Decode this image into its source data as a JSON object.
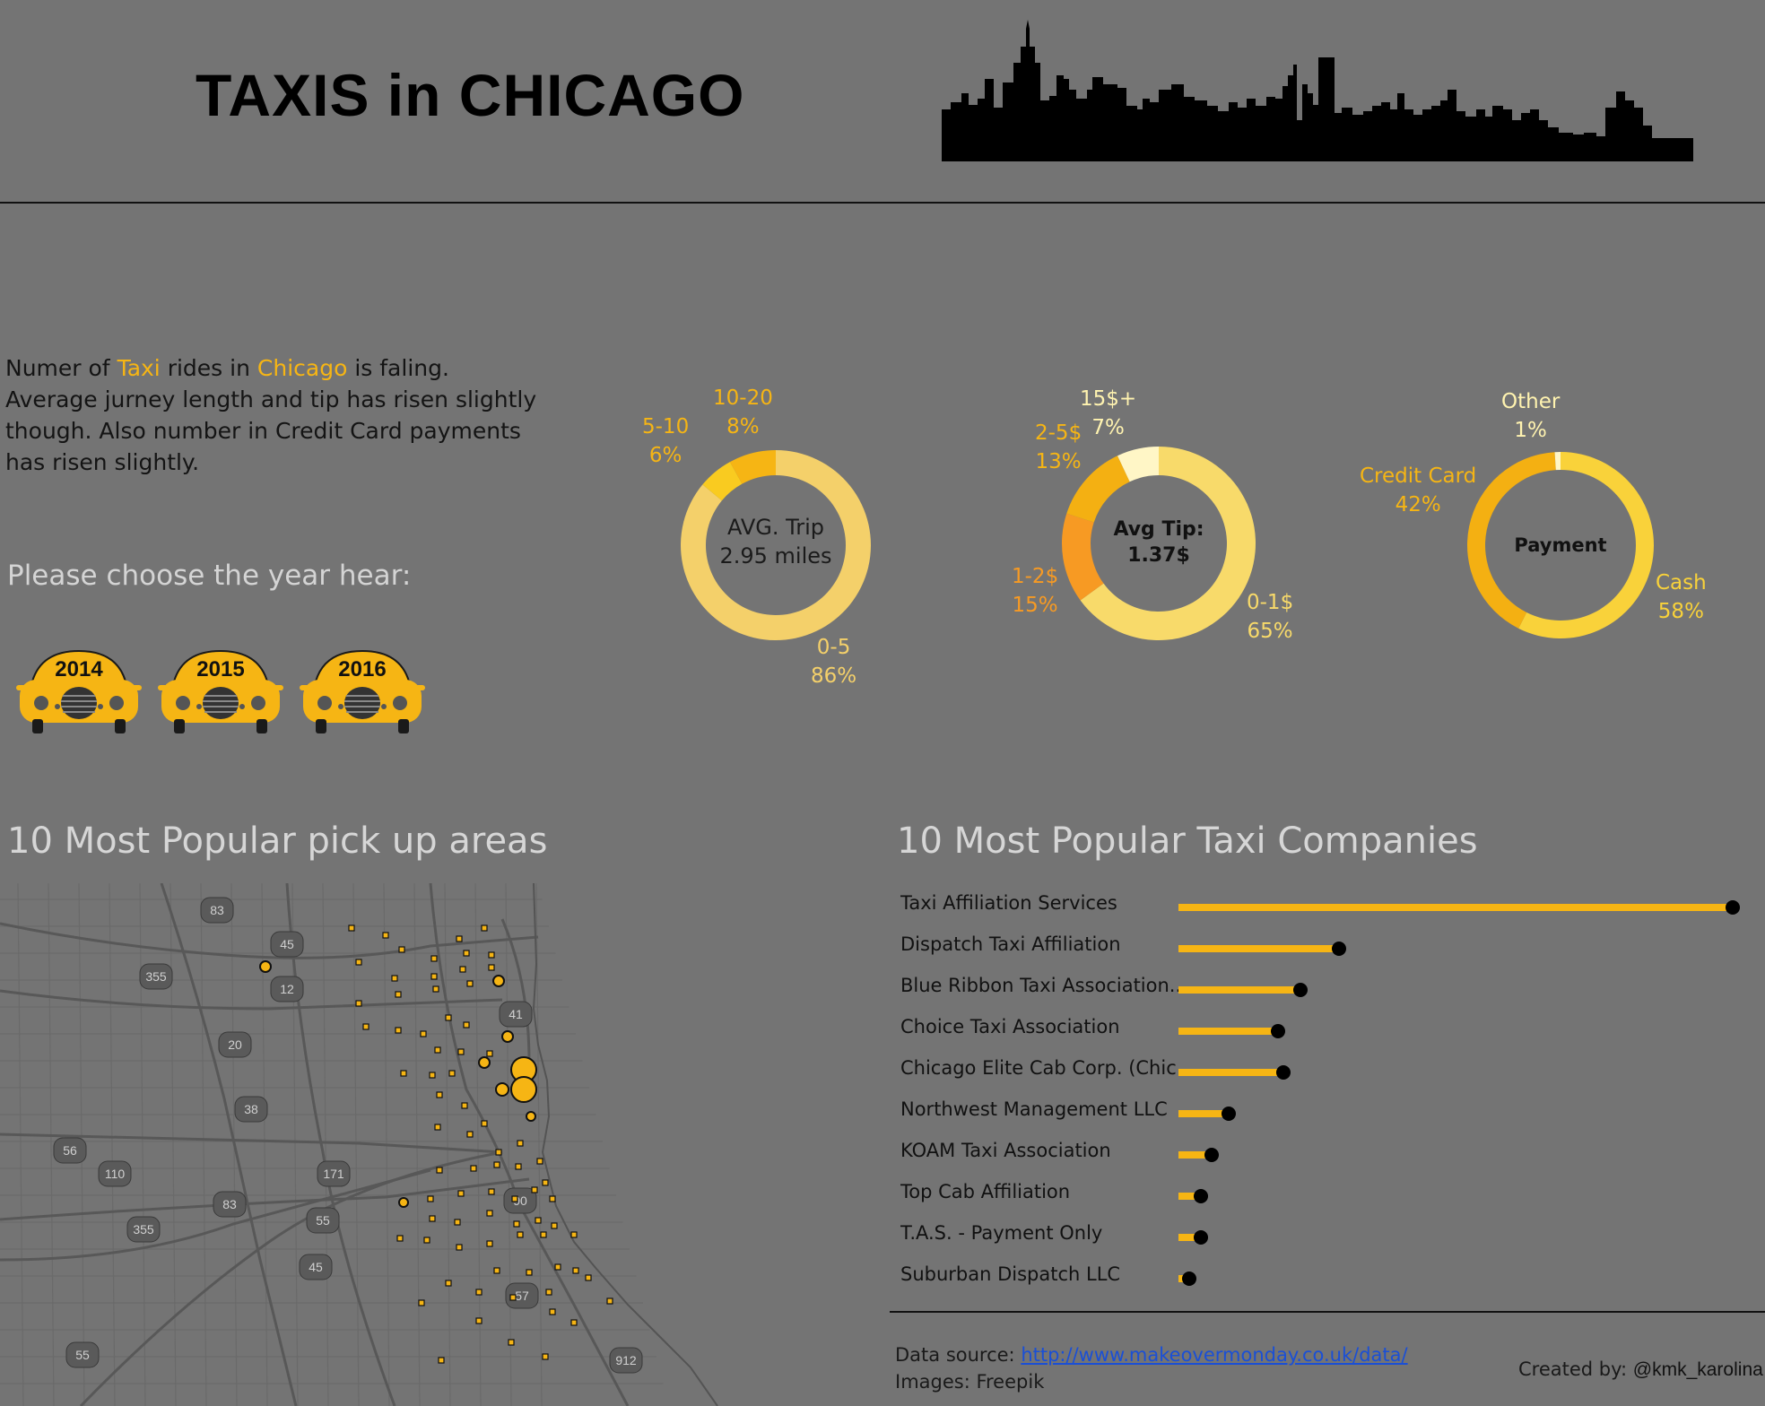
{
  "header": {
    "title": "TAXIS in CHICAGO"
  },
  "intro": {
    "p1": "Numer of ",
    "taxi": "Taxi",
    "p2": " rides in ",
    "chicago": "Chicago",
    "p3": " is faling. Average jurney length and tip has risen slightly though. Also number in Credit Card payments has risen slightly."
  },
  "year_selector": {
    "prompt": "Please choose the year hear:",
    "years": [
      "2014",
      "2015",
      "2016"
    ]
  },
  "donuts": {
    "trip": {
      "center_line1": "AVG. Trip",
      "center_line2": "2.95 miles",
      "segments": [
        {
          "label": "0-5",
          "pct": "86%",
          "value": 86,
          "color": "#F4D06A"
        },
        {
          "label": "5-10",
          "pct": "6%",
          "value": 6,
          "color": "#F9CB20"
        },
        {
          "label": "10-20",
          "pct": "8%",
          "value": 8,
          "color": "#F6B514"
        }
      ]
    },
    "tip": {
      "center_line1": "Avg Tip:",
      "center_line2": "1.37$",
      "segments": [
        {
          "label": "0-1$",
          "pct": "65%",
          "value": 65,
          "color": "#F8DA6A"
        },
        {
          "label": "1-2$",
          "pct": "15%",
          "value": 15,
          "color": "#F79A23"
        },
        {
          "label": "2-5$",
          "pct": "13%",
          "value": 13,
          "color": "#F4B012"
        },
        {
          "label": "15$+",
          "pct": "7%",
          "value": 7,
          "color": "#FFF6C6"
        }
      ]
    },
    "payment": {
      "center_line1": "Payment",
      "segments": [
        {
          "label": "Cash",
          "pct": "58%",
          "value": 58,
          "color": "#F9D23A"
        },
        {
          "label": "Credit Card",
          "pct": "42%",
          "value": 42,
          "color": "#F4B012"
        },
        {
          "label": "Other",
          "pct": "1%",
          "value": 1,
          "color": "#FFF6C6"
        }
      ]
    }
  },
  "map_section": {
    "title": "10 Most Popular pick up areas",
    "highway_shields": [
      "83",
      "45",
      "355",
      "12",
      "41",
      "20",
      "38",
      "56",
      "110",
      "171",
      "83",
      "355",
      "55",
      "90",
      "45",
      "57",
      "55",
      "912"
    ]
  },
  "companies_section": {
    "title": "10 Most  Popular Taxi Companies"
  },
  "chart_data": {
    "type": "bar",
    "orientation": "horizontal",
    "title": "10 Most  Popular Taxi Companies",
    "categories": [
      "Taxi Affiliation Services",
      "Dispatch Taxi Affiliation",
      "Blue Ribbon Taxi Association..",
      "Choice Taxi Association",
      "Chicago Elite Cab Corp. (Chic..",
      "Northwest Management LLC",
      "KOAM Taxi Association",
      "Top Cab Affiliation",
      "T.A.S. - Payment Only",
      "Suburban Dispatch LLC"
    ],
    "values": [
      100,
      29,
      22,
      18,
      19,
      9,
      6,
      4,
      4,
      2
    ],
    "bar_color": "#F6B514",
    "dot_color": "#000000",
    "grid": false
  },
  "footer": {
    "source_label": "Data source: ",
    "source_link": "http://www.makeovermonday.co.uk/data/",
    "images": "Images: Freepik",
    "created_by": "Created by: ",
    "author": "@kmk_karolina"
  }
}
